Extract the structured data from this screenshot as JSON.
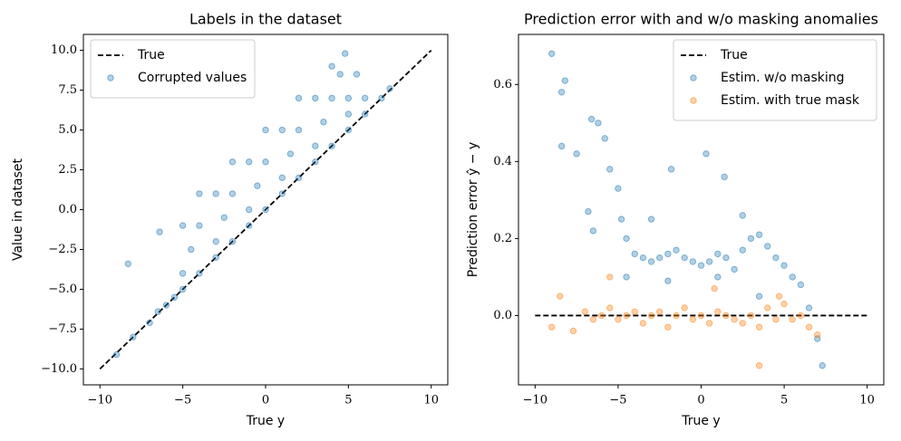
{
  "chart_data": [
    {
      "type": "scatter",
      "title": "Labels in the dataset",
      "xlabel": "True y",
      "ylabel": "Value in dataset",
      "xlim": [
        -11,
        11
      ],
      "ylim": [
        -11,
        11
      ],
      "xticks": [
        {
          "value": -10,
          "label": "−10"
        },
        {
          "value": -5,
          "label": "−5"
        },
        0,
        5,
        10
      ],
      "yticks": [
        {
          "value": -10,
          "label": "−10.0"
        },
        {
          "value": -7.5,
          "label": "−7.5"
        },
        {
          "value": -5,
          "label": "−5.0"
        },
        {
          "value": -2.5,
          "label": "−2.5"
        },
        {
          "value": 0,
          "label": "0.0"
        },
        {
          "value": 2.5,
          "label": "2.5"
        },
        {
          "value": 5,
          "label": "5.0"
        },
        {
          "value": 7.5,
          "label": "7.5"
        },
        {
          "value": 10,
          "label": "10.0"
        }
      ],
      "legend": "upper left",
      "series": [
        {
          "name": "True",
          "type": "line",
          "linestyle": "dashed",
          "color": "#000000",
          "x": [
            -10,
            10
          ],
          "values": [
            -10,
            10
          ]
        },
        {
          "name": "Corrupted values",
          "type": "scatter",
          "color": "#1f77b4",
          "x": [
            -9,
            -8,
            -7,
            -6.5,
            -6,
            -5.5,
            -5,
            -4,
            -3,
            -2,
            -1,
            0,
            1,
            2,
            3,
            4,
            5,
            6,
            7,
            7.5,
            -5,
            -3,
            -1,
            1,
            3,
            5,
            6,
            -4.5,
            -2.5,
            -0.5,
            1.5,
            3.5,
            5,
            -4,
            -2,
            0,
            2,
            4,
            5.5,
            -5,
            -3,
            -1,
            1,
            3,
            4.5,
            -8.3,
            -6.4,
            -4,
            -2,
            0,
            2,
            4,
            4.8
          ],
          "values": [
            -9.1,
            -8,
            -7.1,
            -6.4,
            -6,
            -5.5,
            -5,
            -4,
            -3,
            -2,
            -1,
            0,
            1,
            2,
            3,
            4,
            5,
            6,
            7,
            7.6,
            -4,
            -2,
            0,
            2,
            4,
            6,
            7,
            -2.5,
            -0.5,
            1.5,
            3.5,
            5.5,
            7,
            -1,
            1,
            3,
            5,
            7,
            8.5,
            -1,
            1,
            3,
            5,
            7,
            8.5,
            -3.4,
            -1.4,
            1,
            3,
            5,
            7,
            9,
            9.8
          ]
        }
      ]
    },
    {
      "type": "scatter",
      "title": "Prediction error with and w/o masking anomalies",
      "xlabel": "True y",
      "ylabel": "Prediction error ŷ − y",
      "xlim": [
        -11,
        11
      ],
      "ylim": [
        -0.18,
        0.73
      ],
      "xticks": [
        {
          "value": -10,
          "label": "−10"
        },
        {
          "value": -5,
          "label": "−5"
        },
        0,
        5,
        10
      ],
      "yticks": [
        {
          "value": 0,
          "label": "0.0"
        },
        0.2,
        0.4,
        0.6
      ],
      "legend": "upper right",
      "series": [
        {
          "name": "True",
          "type": "line",
          "linestyle": "dashed",
          "color": "#000000",
          "x": [
            -10,
            10
          ],
          "values": [
            0,
            0
          ]
        },
        {
          "name": "Estim. w/o masking",
          "type": "scatter",
          "color": "#1f77b4",
          "x": [
            -9,
            -8.4,
            -8.2,
            -8.4,
            -7.5,
            -6.6,
            -6.2,
            -5.8,
            -6.8,
            -6.5,
            -5.5,
            -5,
            -4.8,
            -4.5,
            -4,
            -3.5,
            -3,
            -2.5,
            -2,
            -1.5,
            -1,
            -0.5,
            0,
            0.5,
            1,
            1.5,
            2,
            2.5,
            3,
            3.5,
            4,
            4.5,
            5,
            5.5,
            6,
            6.5,
            7,
            7.3,
            0.3,
            -1.8,
            1.4,
            -3,
            -2,
            3.5,
            -4.5,
            2.5,
            1
          ],
          "values": [
            0.68,
            0.58,
            0.61,
            0.44,
            0.42,
            0.51,
            0.5,
            0.46,
            0.27,
            0.22,
            0.38,
            0.33,
            0.25,
            0.2,
            0.16,
            0.15,
            0.14,
            0.15,
            0.16,
            0.17,
            0.15,
            0.14,
            0.13,
            0.14,
            0.16,
            0.15,
            0.12,
            0.17,
            0.2,
            0.21,
            0.18,
            0.15,
            0.13,
            0.1,
            0.08,
            0.02,
            -0.06,
            -0.13,
            0.42,
            0.38,
            0.36,
            0.25,
            0.09,
            0.05,
            0.1,
            0.26,
            0.1
          ]
        },
        {
          "name": "Estim. with true mask",
          "type": "scatter",
          "color": "#ff7f0e",
          "x": [
            -9,
            -8.5,
            -7.7,
            -7,
            -6.5,
            -6,
            -5.5,
            -5,
            -4.5,
            -4,
            -3.5,
            -3,
            -2.5,
            -2,
            -1.5,
            -1,
            -0.5,
            0,
            0.5,
            1,
            1.5,
            2,
            2.5,
            3,
            3.5,
            4,
            4.5,
            5,
            5.5,
            6,
            6.5,
            7,
            3.5,
            -5.5,
            0.8,
            4.7
          ],
          "values": [
            -0.03,
            0.05,
            -0.04,
            0.01,
            -0.01,
            0,
            0.02,
            -0.01,
            0,
            0.01,
            -0.02,
            0,
            0.01,
            -0.03,
            0,
            0.02,
            -0.01,
            0,
            -0.02,
            0.01,
            0,
            -0.01,
            -0.02,
            0,
            -0.03,
            0.02,
            -0.01,
            0.03,
            -0.01,
            0,
            -0.03,
            -0.05,
            -0.13,
            0.1,
            0.07,
            0.05
          ]
        }
      ]
    }
  ]
}
